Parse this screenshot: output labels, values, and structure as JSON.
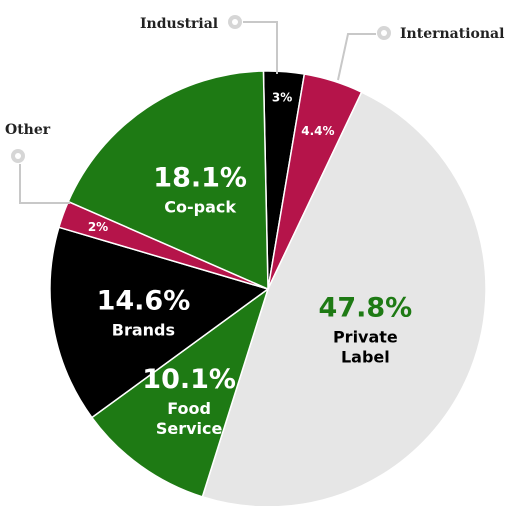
{
  "chart_data": {
    "type": "pie",
    "title": "",
    "slices": [
      {
        "label": "Industrial",
        "value": 3.0,
        "value_label": "3%",
        "color": "#000000",
        "text_color": "#ffffff"
      },
      {
        "label": "International",
        "value": 4.4,
        "value_label": "4.4%",
        "color": "#b5144a",
        "text_color": "#ffffff"
      },
      {
        "label": "Private Label",
        "value": 47.8,
        "value_label": "47.8%",
        "color": "#e6e6e6",
        "text_color": "#1e7a14",
        "name_color": "#000000"
      },
      {
        "label": "Food Service",
        "value": 10.1,
        "value_label": "10.1%",
        "color": "#1e7a14",
        "text_color": "#ffffff"
      },
      {
        "label": "Brands",
        "value": 14.6,
        "value_label": "14.6%",
        "color": "#000000",
        "text_color": "#ffffff"
      },
      {
        "label": "Other",
        "value": 2.0,
        "value_label": "2%",
        "color": "#b5144a",
        "text_color": "#ffffff"
      },
      {
        "label": "Co-pack",
        "value": 18.1,
        "value_label": "18.1%",
        "color": "#1e7a14",
        "text_color": "#ffffff"
      }
    ],
    "legend": "none"
  }
}
